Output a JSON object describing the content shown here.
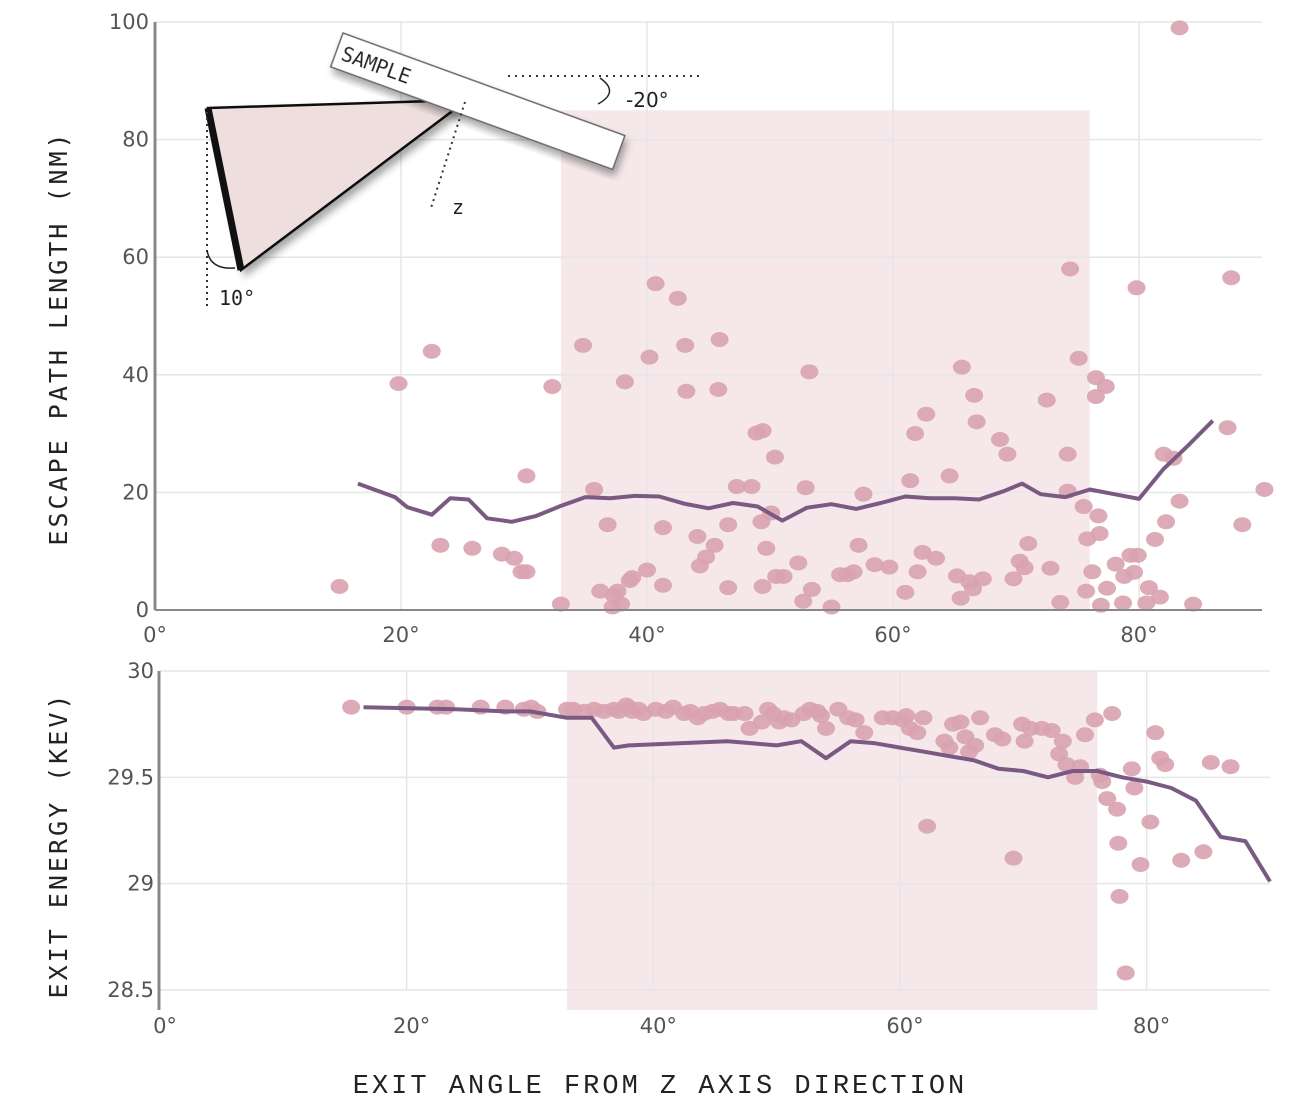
{
  "colors": {
    "points": "#d9a2b0",
    "line": "#7a5a82",
    "band": "#f6e8ea",
    "grid": "#e6e6e6",
    "axis": "#888888",
    "inset_fill": "#eedede"
  },
  "x_title": "EXIT ANGLE FROM Z AXIS DIRECTION",
  "x_ticks": [
    "0°",
    "20°",
    "40°",
    "60°",
    "80°"
  ],
  "inset": {
    "sample_label": "SAMPLE",
    "tilt_label": "-20°",
    "z_label": "z",
    "detector_label": "10°"
  },
  "chart_data": [
    {
      "type": "scatter",
      "ylabel": "ESCAPE PATH LENGTH (NM)",
      "xlim": [
        0,
        90
      ],
      "ylim": [
        0,
        100
      ],
      "x_ticks": [
        0,
        20,
        40,
        60,
        80
      ],
      "y_ticks": [
        0,
        20,
        40,
        60,
        80,
        100
      ],
      "highlight_band": [
        33,
        76
      ],
      "grid": true,
      "points": [
        [
          15,
          4
        ],
        [
          19.8,
          38.5
        ],
        [
          22.5,
          44
        ],
        [
          23.2,
          11
        ],
        [
          25.8,
          10.5
        ],
        [
          28.2,
          9.5
        ],
        [
          29.2,
          8.8
        ],
        [
          29.8,
          6.5
        ],
        [
          30.2,
          6.5
        ],
        [
          30.2,
          22.8
        ],
        [
          32.3,
          38
        ],
        [
          33,
          1
        ],
        [
          34.8,
          45
        ],
        [
          35.7,
          20.5
        ],
        [
          36.2,
          3.2
        ],
        [
          36.8,
          14.5
        ],
        [
          37.2,
          0.5
        ],
        [
          37.3,
          2.5
        ],
        [
          37.6,
          3.2
        ],
        [
          37.9,
          1
        ],
        [
          38.2,
          38.8
        ],
        [
          38.6,
          5
        ],
        [
          38.8,
          5.5
        ],
        [
          40,
          6.8
        ],
        [
          40.2,
          43
        ],
        [
          40.7,
          55.5
        ],
        [
          41.3,
          4.2
        ],
        [
          41.3,
          14
        ],
        [
          42.5,
          53
        ],
        [
          43.1,
          45
        ],
        [
          43.2,
          37.2
        ],
        [
          44.1,
          12.5
        ],
        [
          44.3,
          7.5
        ],
        [
          44.8,
          9
        ],
        [
          45.5,
          11
        ],
        [
          45.9,
          46
        ],
        [
          45.8,
          37.5
        ],
        [
          46.6,
          14.5
        ],
        [
          46.6,
          3.8
        ],
        [
          47.3,
          21
        ],
        [
          48.5,
          21
        ],
        [
          48.9,
          30.1
        ],
        [
          49.3,
          15
        ],
        [
          49.7,
          10.5
        ],
        [
          49.4,
          4
        ],
        [
          49.4,
          30.5
        ],
        [
          50.1,
          16.5
        ],
        [
          50.4,
          26
        ],
        [
          50.5,
          5.7
        ],
        [
          51.1,
          5.7
        ],
        [
          52.3,
          8
        ],
        [
          52.7,
          1.5
        ],
        [
          52.9,
          20.8
        ],
        [
          53.2,
          40.5
        ],
        [
          53.4,
          3.5
        ],
        [
          55,
          0.5
        ],
        [
          55.7,
          6
        ],
        [
          56.3,
          6
        ],
        [
          56.8,
          6.5
        ],
        [
          57.2,
          11
        ],
        [
          57.6,
          19.7
        ],
        [
          58.5,
          7.7
        ],
        [
          59.7,
          7.3
        ],
        [
          61,
          3
        ],
        [
          61.4,
          22
        ],
        [
          61.8,
          30
        ],
        [
          62,
          6.5
        ],
        [
          62.4,
          9.8
        ],
        [
          62.7,
          33.3
        ],
        [
          63.5,
          8.8
        ],
        [
          64.6,
          22.8
        ],
        [
          65.2,
          5.8
        ],
        [
          65.5,
          2
        ],
        [
          65.6,
          41.3
        ],
        [
          66.2,
          4.8
        ],
        [
          66.5,
          3.6
        ],
        [
          66.6,
          36.5
        ],
        [
          66.8,
          32
        ],
        [
          67.3,
          5.3
        ],
        [
          68.7,
          29
        ],
        [
          69.3,
          26.5
        ],
        [
          69.8,
          5.3
        ],
        [
          70.3,
          8.3
        ],
        [
          70.7,
          7.2
        ],
        [
          71,
          11.3
        ],
        [
          72.5,
          35.7
        ],
        [
          72.8,
          7.1
        ],
        [
          73.6,
          1.3
        ],
        [
          74.2,
          20.2
        ],
        [
          74.2,
          26.5
        ],
        [
          74.4,
          58
        ],
        [
          75.1,
          42.8
        ],
        [
          75.5,
          17.6
        ],
        [
          75.8,
          12.1
        ],
        [
          75.7,
          3.2
        ],
        [
          76.2,
          6.5
        ],
        [
          76.5,
          36.3
        ],
        [
          76.5,
          39.5
        ],
        [
          76.7,
          16
        ],
        [
          76.8,
          13
        ],
        [
          76.9,
          0.8
        ],
        [
          77.3,
          38
        ],
        [
          77.4,
          3.7
        ],
        [
          78.1,
          7.8
        ],
        [
          78.7,
          1.2
        ],
        [
          78.8,
          5.7
        ],
        [
          79.3,
          9.3
        ],
        [
          79.6,
          6.4
        ],
        [
          79.8,
          54.8
        ],
        [
          79.9,
          9.3
        ],
        [
          80.6,
          1.2
        ],
        [
          80.8,
          3.8
        ],
        [
          81.3,
          12
        ],
        [
          81.7,
          2.2
        ],
        [
          82,
          26.5
        ],
        [
          82.2,
          15
        ],
        [
          82.8,
          25.8
        ],
        [
          83.3,
          18.5
        ],
        [
          83.3,
          99
        ],
        [
          84.4,
          1
        ],
        [
          87.2,
          31
        ],
        [
          87.5,
          56.5
        ],
        [
          88.4,
          14.5
        ],
        [
          90.2,
          20.5
        ]
      ],
      "line": [
        [
          16.5,
          21.5
        ],
        [
          19.5,
          19.2
        ],
        [
          20.5,
          17.5
        ],
        [
          22.5,
          16.2
        ],
        [
          24,
          19
        ],
        [
          25.5,
          18.8
        ],
        [
          27,
          15.6
        ],
        [
          29,
          15
        ],
        [
          31,
          16
        ],
        [
          33,
          17.7
        ],
        [
          35,
          19.2
        ],
        [
          37,
          19
        ],
        [
          39,
          19.4
        ],
        [
          41,
          19.3
        ],
        [
          43,
          18.1
        ],
        [
          45,
          17.3
        ],
        [
          47,
          18.2
        ],
        [
          49,
          17.6
        ],
        [
          51,
          15.2
        ],
        [
          53,
          17.4
        ],
        [
          55,
          18
        ],
        [
          57,
          17.2
        ],
        [
          59,
          18.2
        ],
        [
          61,
          19.3
        ],
        [
          63,
          19
        ],
        [
          65,
          19
        ],
        [
          67,
          18.8
        ],
        [
          69,
          20.2
        ],
        [
          70.5,
          21.5
        ],
        [
          72,
          19.7
        ],
        [
          74,
          19.2
        ],
        [
          76,
          20.5
        ],
        [
          78,
          19.7
        ],
        [
          80,
          18.9
        ],
        [
          82,
          24
        ],
        [
          84,
          28
        ],
        [
          86,
          32.2
        ]
      ]
    },
    {
      "type": "scatter",
      "ylabel": "EXIT ENERGY (KEV)",
      "xlim": [
        0,
        90
      ],
      "ylim": [
        28.5,
        30
      ],
      "x_ticks": [
        0,
        20,
        40,
        60,
        80
      ],
      "y_ticks": [
        28.5,
        29,
        29.5,
        30
      ],
      "y_tick_labels": [
        "28.5",
        "29",
        "29.5",
        "30"
      ],
      "highlight_band": [
        33,
        76
      ],
      "grid": true,
      "points": [
        [
          15.5,
          29.83
        ],
        [
          20,
          29.83
        ],
        [
          22.5,
          29.83
        ],
        [
          23.2,
          29.83
        ],
        [
          26,
          29.83
        ],
        [
          28,
          29.83
        ],
        [
          29.5,
          29.82
        ],
        [
          30.1,
          29.83
        ],
        [
          30.6,
          29.81
        ],
        [
          33,
          29.82
        ],
        [
          33.5,
          29.82
        ],
        [
          34.4,
          29.81
        ],
        [
          35.2,
          29.82
        ],
        [
          36,
          29.81
        ],
        [
          36.8,
          29.82
        ],
        [
          37.2,
          29.81
        ],
        [
          37.8,
          29.84
        ],
        [
          38,
          29.83
        ],
        [
          38.3,
          29.81
        ],
        [
          38.8,
          29.82
        ],
        [
          39.2,
          29.8
        ],
        [
          40.2,
          29.82
        ],
        [
          41,
          29.81
        ],
        [
          41.6,
          29.83
        ],
        [
          42.5,
          29.8
        ],
        [
          43,
          29.81
        ],
        [
          43.6,
          29.78
        ],
        [
          44.1,
          29.8
        ],
        [
          44.8,
          29.81
        ],
        [
          45.4,
          29.82
        ],
        [
          46.1,
          29.8
        ],
        [
          46.5,
          29.8
        ],
        [
          47.4,
          29.8
        ],
        [
          47.8,
          29.73
        ],
        [
          48.8,
          29.76
        ],
        [
          49.3,
          29.82
        ],
        [
          49.7,
          29.8
        ],
        [
          50.2,
          29.76
        ],
        [
          50.6,
          29.78
        ],
        [
          51.2,
          29.77
        ],
        [
          52.2,
          29.8
        ],
        [
          52.7,
          29.82
        ],
        [
          53.3,
          29.81
        ],
        [
          53.6,
          29.79
        ],
        [
          54,
          29.73
        ],
        [
          55,
          29.82
        ],
        [
          55.8,
          29.78
        ],
        [
          56.4,
          29.77
        ],
        [
          57.1,
          29.71
        ],
        [
          58.6,
          29.78
        ],
        [
          59.4,
          29.78
        ],
        [
          60.2,
          29.77
        ],
        [
          60.5,
          29.79
        ],
        [
          60.8,
          29.73
        ],
        [
          61.4,
          29.71
        ],
        [
          61.9,
          29.78
        ],
        [
          62.2,
          29.27
        ],
        [
          63.6,
          29.67
        ],
        [
          64,
          29.64
        ],
        [
          64.3,
          29.75
        ],
        [
          64.9,
          29.76
        ],
        [
          65.3,
          29.69
        ],
        [
          65.6,
          29.62
        ],
        [
          66.1,
          29.65
        ],
        [
          66.5,
          29.78
        ],
        [
          67.7,
          29.7
        ],
        [
          68.3,
          29.68
        ],
        [
          69.2,
          29.12
        ],
        [
          69.9,
          29.75
        ],
        [
          70.1,
          29.67
        ],
        [
          70.6,
          29.73
        ],
        [
          71.5,
          29.73
        ],
        [
          72.3,
          29.72
        ],
        [
          72.9,
          29.61
        ],
        [
          73.2,
          29.67
        ],
        [
          73.5,
          29.56
        ],
        [
          74.2,
          29.5
        ],
        [
          74.6,
          29.55
        ],
        [
          75,
          29.7
        ],
        [
          75.8,
          29.77
        ],
        [
          76.2,
          29.51
        ],
        [
          76.4,
          29.48
        ],
        [
          76.8,
          29.4
        ],
        [
          77.2,
          29.8
        ],
        [
          77.6,
          29.35
        ],
        [
          77.7,
          29.19
        ],
        [
          77.8,
          28.94
        ],
        [
          78.3,
          28.58
        ],
        [
          78.8,
          29.54
        ],
        [
          79,
          29.45
        ],
        [
          79.5,
          29.09
        ],
        [
          80.3,
          29.29
        ],
        [
          80.7,
          29.71
        ],
        [
          81.1,
          29.59
        ],
        [
          81.5,
          29.56
        ],
        [
          82.8,
          29.11
        ],
        [
          84.6,
          29.15
        ],
        [
          85.2,
          29.57
        ],
        [
          86.8,
          29.55
        ]
      ],
      "line": [
        [
          16.5,
          29.83
        ],
        [
          24,
          29.82
        ],
        [
          28,
          29.81
        ],
        [
          30,
          29.81
        ],
        [
          33,
          29.78
        ],
        [
          35,
          29.78
        ],
        [
          36.8,
          29.64
        ],
        [
          38,
          29.65
        ],
        [
          46,
          29.67
        ],
        [
          48,
          29.66
        ],
        [
          50,
          29.65
        ],
        [
          52,
          29.67
        ],
        [
          54,
          29.59
        ],
        [
          56,
          29.67
        ],
        [
          58,
          29.66
        ],
        [
          60,
          29.64
        ],
        [
          62,
          29.62
        ],
        [
          64,
          29.6
        ],
        [
          66,
          29.58
        ],
        [
          68,
          29.54
        ],
        [
          70,
          29.53
        ],
        [
          72,
          29.5
        ],
        [
          74,
          29.53
        ],
        [
          76,
          29.53
        ],
        [
          78,
          29.5
        ],
        [
          80,
          29.48
        ],
        [
          82,
          29.45
        ],
        [
          84,
          29.39
        ],
        [
          86,
          29.22
        ],
        [
          88,
          29.2
        ],
        [
          90,
          29.01
        ]
      ]
    }
  ]
}
